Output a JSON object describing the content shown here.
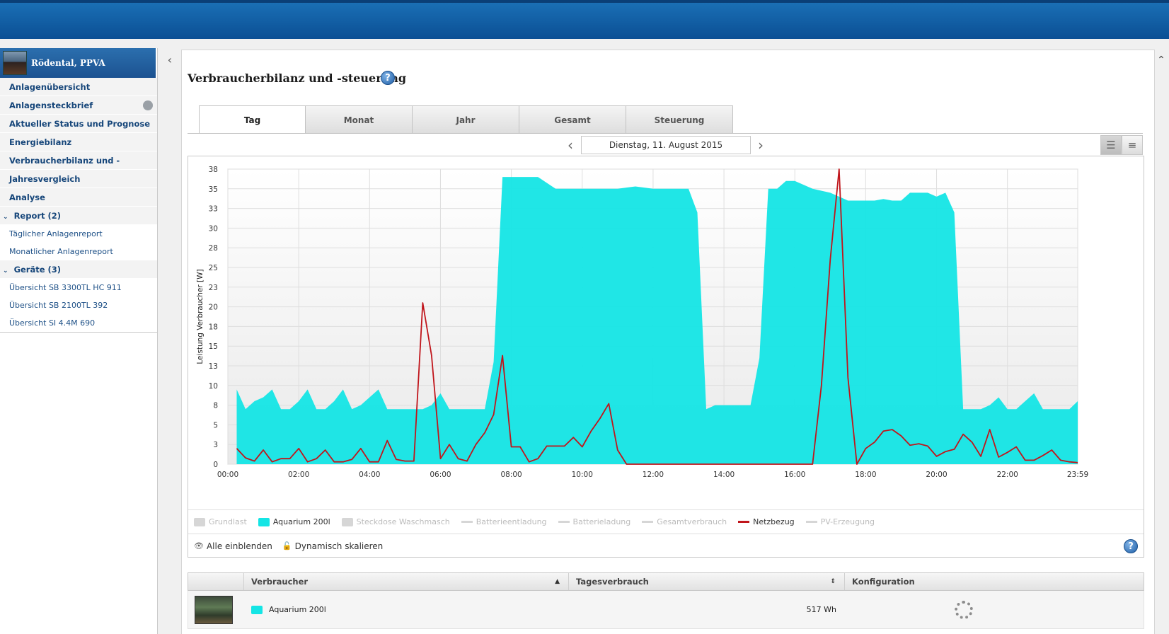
{
  "plant": {
    "name": "Rödental, PPVA"
  },
  "nav": {
    "items": [
      {
        "label": "Anlagenübersicht"
      },
      {
        "label": "Anlagensteckbrief"
      },
      {
        "label": "Aktueller Status und Prognose"
      },
      {
        "label": "Energiebilanz"
      },
      {
        "label": "Verbraucherbilanz und -steuerung"
      },
      {
        "label": "Jahresvergleich"
      },
      {
        "label": "Analyse"
      }
    ],
    "report_group": "Report (2)",
    "report_items": [
      {
        "label": "Täglicher Anlagenreport"
      },
      {
        "label": "Monatlicher Anlagenreport"
      }
    ],
    "devices_group": "Geräte (3)",
    "device_items": [
      {
        "label": "Übersicht SB 3300TL HC 911"
      },
      {
        "label": "Übersicht SB 2100TL 392"
      },
      {
        "label": "Übersicht SI 4.4M 690"
      }
    ]
  },
  "page": {
    "title": "Verbraucherbilanz und -steuerung",
    "help": "?"
  },
  "tabs": [
    "Tag",
    "Monat",
    "Jahr",
    "Gesamt",
    "Steuerung"
  ],
  "date_nav": {
    "date": "Dienstag, 11. August 2015"
  },
  "legend": [
    {
      "label": "Grundlast",
      "kind": "box",
      "color": "#d6d6d6",
      "active": false
    },
    {
      "label": "Aquarium 200l",
      "kind": "box",
      "color": "#14e5e5",
      "active": true
    },
    {
      "label": "Steckdose Waschmasch",
      "kind": "box",
      "color": "#d6d6d6",
      "active": false
    },
    {
      "label": "Batterieentladung",
      "kind": "line",
      "color": "#d6d6d6",
      "active": false
    },
    {
      "label": "Batterieladung",
      "kind": "line",
      "color": "#d6d6d6",
      "active": false
    },
    {
      "label": "Gesamtverbrauch",
      "kind": "line",
      "color": "#d6d6d6",
      "active": false
    },
    {
      "label": "Netzbezug",
      "kind": "line",
      "color": "#c0151b",
      "active": true
    },
    {
      "label": "PV-Erzeugung",
      "kind": "line",
      "color": "#d6d6d6",
      "active": false
    }
  ],
  "controls": {
    "show_all": "Alle einblenden",
    "dynamic_scale": "Dynamisch skalieren"
  },
  "table": {
    "headers": [
      "Verbraucher",
      "Tagesverbrauch",
      "Konfiguration"
    ],
    "rows": [
      {
        "name": "Aquarium 200l",
        "daily": "517 Wh"
      }
    ]
  },
  "chart_data": {
    "type": "area",
    "ylabel": "Leistung Verbraucher [W]",
    "ylim": [
      0,
      37.5
    ],
    "x_tick_labels": [
      "00:00",
      "02:00",
      "04:00",
      "06:00",
      "08:00",
      "10:00",
      "12:00",
      "14:00",
      "16:00",
      "18:00",
      "20:00",
      "22:00",
      "23:59"
    ],
    "y_ticks": [
      0,
      2.5,
      5,
      7.5,
      10,
      12.5,
      15,
      17.5,
      20,
      22.5,
      25,
      27.5,
      30,
      32.5,
      35,
      37.5
    ],
    "y_tick_labels": [
      "0",
      "3",
      "5",
      "8",
      "10",
      "13",
      "15",
      "18",
      "20",
      "23",
      "25",
      "28",
      "30",
      "33",
      "35",
      "38"
    ],
    "x_unit": "hours",
    "xlim": [
      0,
      23.983
    ],
    "series": [
      {
        "name": "Aquarium 200l",
        "color": "#14e5e5",
        "kind": "area",
        "x": [
          0.25,
          0.5,
          0.75,
          1.0,
          1.25,
          1.5,
          1.75,
          2.0,
          2.25,
          2.5,
          2.75,
          3.0,
          3.25,
          3.5,
          3.75,
          4.0,
          4.25,
          4.5,
          4.75,
          5.25,
          5.5,
          5.75,
          6.0,
          6.25,
          6.5,
          7.0,
          7.25,
          7.5,
          7.75,
          8.25,
          8.75,
          9.25,
          10.0,
          11.0,
          11.5,
          12.0,
          12.5,
          13.0,
          13.25,
          13.5,
          13.75,
          14.0,
          14.25,
          14.75,
          15.0,
          15.25,
          15.5,
          15.75,
          16.0,
          16.25,
          16.5,
          17.0,
          17.25,
          17.5,
          17.75,
          18.0,
          18.25,
          18.5,
          18.75,
          19.0,
          19.25,
          19.5,
          19.75,
          20.0,
          20.25,
          20.5,
          20.75,
          21.0,
          21.25,
          21.5,
          21.75,
          22.0,
          22.25,
          22.5,
          22.75,
          23.0,
          23.25,
          23.5,
          23.75,
          23.983
        ],
        "y": [
          9.5,
          7,
          8,
          8.5,
          9.5,
          7,
          7,
          8,
          9.5,
          7,
          7,
          8,
          9.5,
          7,
          7.5,
          8.5,
          9.5,
          7,
          7,
          7,
          7,
          7.5,
          9,
          7,
          7,
          7,
          7,
          13,
          36.5,
          36.5,
          36.5,
          35,
          35,
          35,
          35.3,
          35,
          35,
          35,
          32,
          7,
          7.5,
          7.5,
          7.5,
          7.5,
          13.5,
          35,
          35,
          36,
          36,
          35.5,
          35,
          34.5,
          34,
          33.5,
          33.5,
          33.5,
          33.5,
          33.7,
          33.5,
          33.5,
          34.5,
          34.5,
          34.5,
          34,
          34.5,
          32,
          7,
          7,
          7,
          7.5,
          8.5,
          7,
          7,
          8,
          9,
          7,
          7,
          7,
          7,
          8
        ]
      },
      {
        "name": "Netzbezug",
        "color": "#c0151b",
        "kind": "line",
        "x": [
          0.25,
          0.5,
          0.75,
          1.0,
          1.25,
          1.5,
          1.75,
          2.0,
          2.25,
          2.5,
          2.75,
          3.0,
          3.25,
          3.5,
          3.75,
          4.0,
          4.25,
          4.5,
          4.75,
          5.0,
          5.25,
          5.5,
          5.75,
          6.0,
          6.25,
          6.5,
          6.75,
          7.0,
          7.25,
          7.5,
          7.75,
          8.0,
          8.25,
          8.5,
          8.75,
          9.0,
          9.25,
          9.5,
          9.75,
          10.0,
          10.25,
          10.5,
          10.75,
          11.0,
          11.25,
          12.0,
          13.0,
          14.0,
          15.0,
          16.0,
          16.5,
          16.75,
          17.0,
          17.25,
          17.5,
          17.75,
          18.0,
          18.25,
          18.5,
          18.75,
          19.0,
          19.25,
          19.5,
          19.75,
          20.0,
          20.25,
          20.5,
          20.75,
          21.0,
          21.25,
          21.5,
          21.75,
          22.0,
          22.25,
          22.5,
          22.75,
          23.0,
          23.25,
          23.5,
          23.75,
          23.983
        ],
        "y": [
          2,
          0.8,
          0.4,
          1.8,
          0.3,
          0.7,
          0.7,
          2,
          0.3,
          0.7,
          1.8,
          0.3,
          0.3,
          0.6,
          2,
          0.3,
          0.3,
          3,
          0.6,
          0.4,
          0.4,
          20.5,
          13.8,
          0.7,
          2.5,
          0.7,
          0.4,
          2.5,
          4,
          6.3,
          13.8,
          2.2,
          2.2,
          0.3,
          0.7,
          2.3,
          2.3,
          2.3,
          3.4,
          2.2,
          4.2,
          5.8,
          7.7,
          1.8,
          0,
          0,
          0,
          0,
          0,
          0,
          0,
          10,
          26,
          37.5,
          11,
          0,
          2,
          2.8,
          4.2,
          4.4,
          3.6,
          2.4,
          2.6,
          2.3,
          1,
          1.6,
          1.9,
          3.8,
          2.8,
          1,
          4.4,
          0.9,
          1.5,
          2.2,
          0.5,
          0.5,
          1.1,
          1.8,
          0.5,
          0.3,
          0.2
        ]
      }
    ]
  }
}
